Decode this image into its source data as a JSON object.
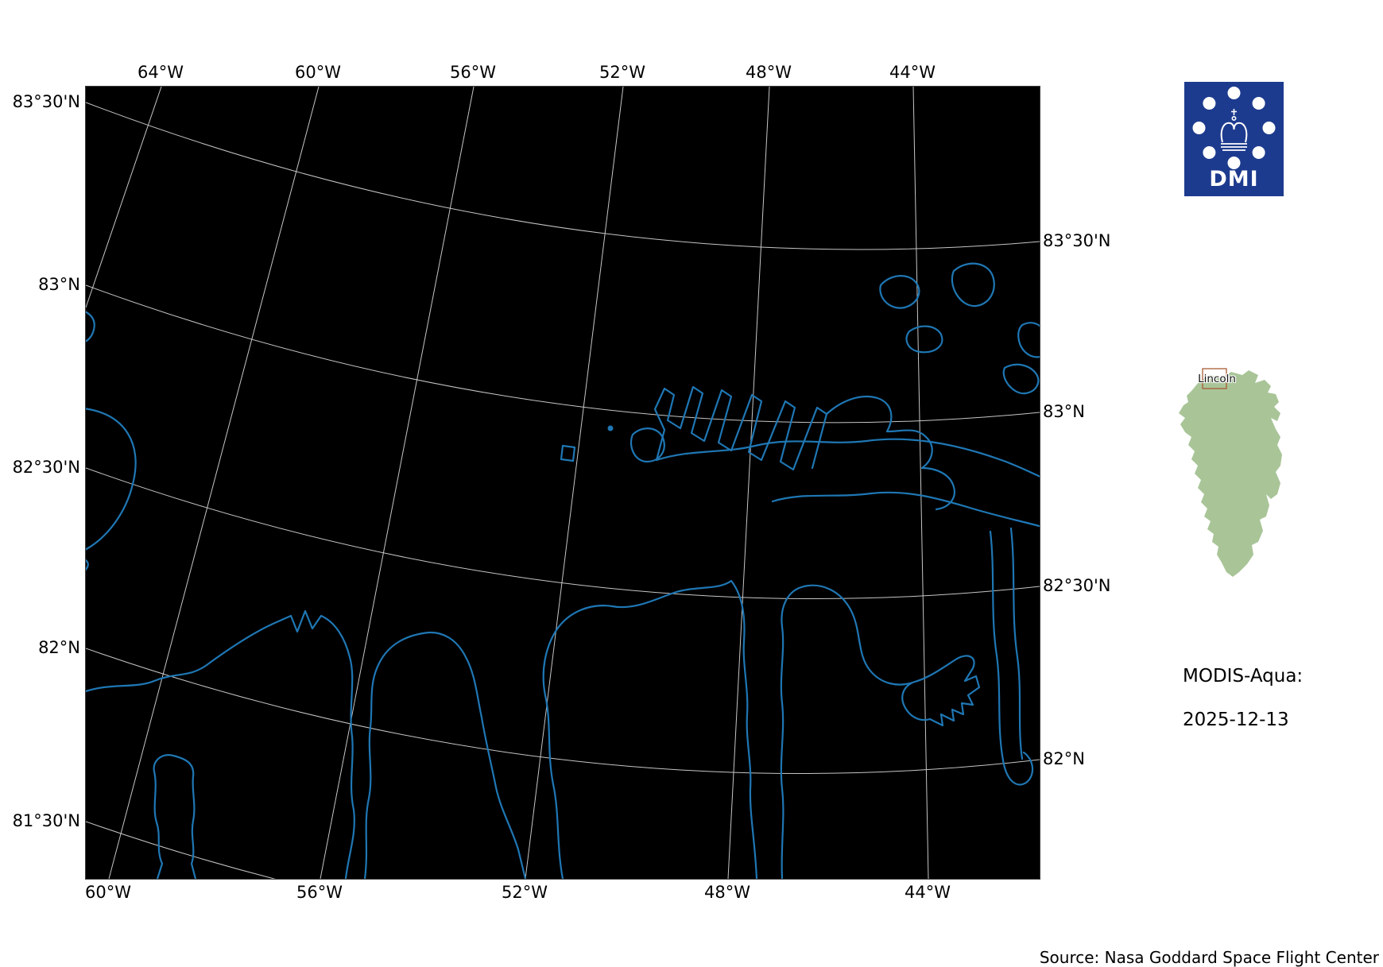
{
  "axes": {
    "top": [
      "64°W",
      "60°W",
      "56°W",
      "52°W",
      "48°W",
      "44°W"
    ],
    "bottom": [
      "60°W",
      "56°W",
      "52°W",
      "48°W",
      "44°W"
    ],
    "left": [
      "83°30'N",
      "83°N",
      "82°30'N",
      "82°N",
      "81°30'N"
    ],
    "right": [
      "83°30'N",
      "83°N",
      "82°30'N",
      "82°N"
    ]
  },
  "logo": {
    "label": "DMI"
  },
  "inset": {
    "region_label": "Lincoln"
  },
  "info": {
    "product": "MODIS-Aqua:",
    "date": "2025-12-13"
  },
  "footer": {
    "source": "Source: Nasa Goddard Space Flight Center"
  },
  "colors": {
    "map_background": "#000000",
    "coastline": "#1f77b4",
    "graticule": "#e9e9e9",
    "logo_blue": "#1d3b8e",
    "inset_green": "#a9c598",
    "region_box": "#a85c32"
  }
}
